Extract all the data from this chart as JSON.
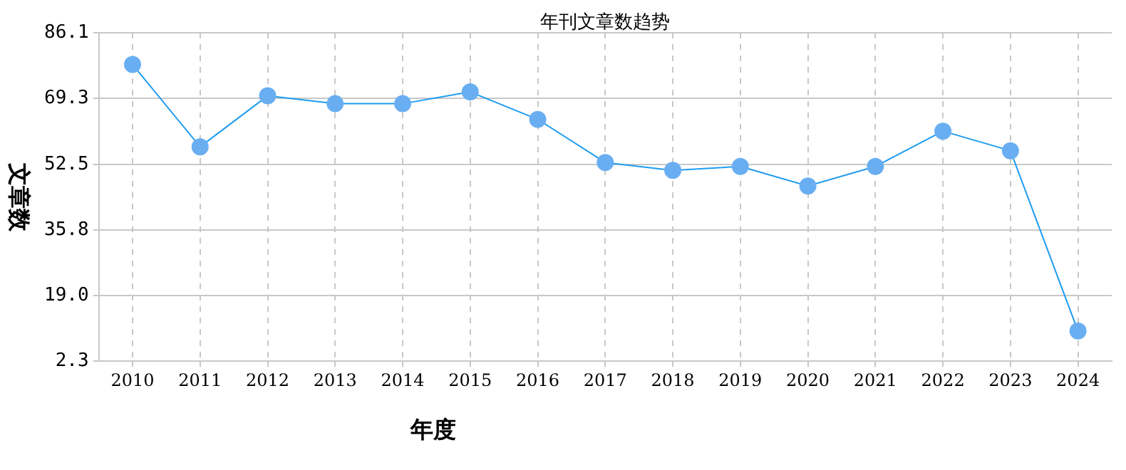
{
  "chart_data": {
    "type": "line",
    "title": "年刊文章数趋势",
    "xlabel": "年度",
    "ylabel": "文章数",
    "categories": [
      "2010",
      "2011",
      "2012",
      "2013",
      "2014",
      "2015",
      "2016",
      "2017",
      "2018",
      "2019",
      "2020",
      "2021",
      "2022",
      "2023",
      "2024"
    ],
    "series": [
      {
        "color": "#1e9cf0",
        "values": [
          78,
          57,
          70,
          68,
          68,
          71,
          64,
          53,
          51,
          52,
          47,
          52,
          61,
          56,
          10
        ]
      }
    ],
    "ylim": [
      2.3,
      86.1
    ],
    "yticks": [
      2.3,
      {
        "value": 19,
        "label": "19.0"
      },
      35.8,
      52.5,
      69.3,
      86.1
    ],
    "grid": true,
    "marker": "circle",
    "line_style": "solid",
    "legend": false
  }
}
